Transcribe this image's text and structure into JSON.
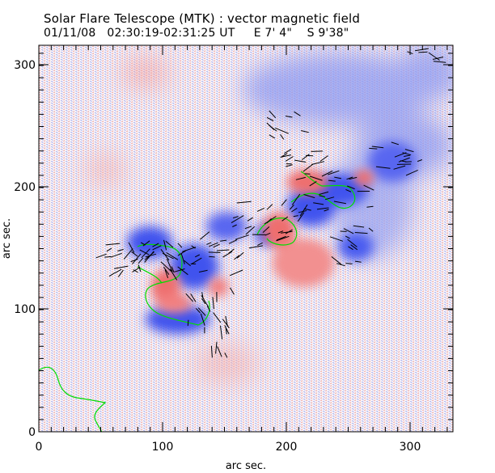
{
  "header": {
    "title": "Solar Flare Telescope (MTK) : vector magnetic field",
    "subtitle": "01/11/08   02:30:19-02:31:25 UT     E 7' 4\"    S 9'38\""
  },
  "plot": {
    "xlabel": "arc sec.",
    "ylabel": "arc sec.",
    "x_ticks": [
      "0",
      "100",
      "200",
      "300"
    ],
    "y_ticks": [
      "0",
      "100",
      "200",
      "300"
    ],
    "x_range": [
      0,
      335
    ],
    "y_range": [
      0,
      318
    ],
    "colors": {
      "positive_polarity": "#f08080",
      "negative_polarity": "#4a5cf0",
      "neutral_line": "#00dd00",
      "vectors": "#000000",
      "frame": "#000000"
    }
  }
}
